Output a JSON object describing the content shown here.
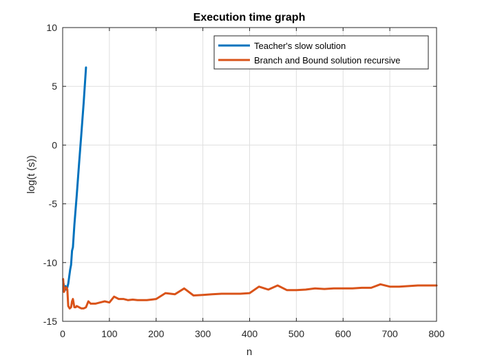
{
  "chart_data": {
    "type": "line",
    "title": "Execution time graph",
    "xlabel": "n",
    "ylabel": "log(t (s))",
    "xlim": [
      0,
      800
    ],
    "ylim": [
      -15,
      10
    ],
    "xticks": [
      0,
      100,
      200,
      300,
      400,
      500,
      600,
      700,
      800
    ],
    "yticks": [
      -15,
      -10,
      -5,
      0,
      5,
      10
    ],
    "grid": true,
    "legend_position": "top-right",
    "series": [
      {
        "name": "Teacher's slow solution",
        "color": "#0072BD",
        "x": [
          2,
          4,
          6,
          8,
          10,
          12,
          14,
          16,
          18,
          20,
          22,
          25,
          30,
          35,
          40,
          45,
          50
        ],
        "y": [
          -11.8,
          -12.4,
          -12.0,
          -12.3,
          -12.1,
          -11.8,
          -11.2,
          -10.6,
          -10.2,
          -9.0,
          -8.7,
          -6.8,
          -4.3,
          -1.6,
          1.0,
          3.6,
          6.6
        ]
      },
      {
        "name": "Branch and Bound solution recursive",
        "color": "#D95319",
        "x": [
          1,
          3,
          5,
          8,
          10,
          12,
          15,
          18,
          20,
          22,
          25,
          28,
          30,
          35,
          40,
          45,
          50,
          55,
          60,
          70,
          80,
          90,
          100,
          110,
          120,
          130,
          140,
          150,
          160,
          170,
          180,
          190,
          200,
          220,
          240,
          260,
          280,
          300,
          320,
          340,
          360,
          380,
          400,
          420,
          440,
          460,
          480,
          500,
          520,
          540,
          560,
          580,
          600,
          620,
          640,
          660,
          680,
          700,
          720,
          740,
          760,
          780,
          800
        ],
        "y": [
          -11.4,
          -12.5,
          -12.2,
          -12.1,
          -12.3,
          -13.7,
          -13.9,
          -13.8,
          -13.3,
          -13.1,
          -13.8,
          -13.8,
          -13.7,
          -13.8,
          -13.9,
          -13.9,
          -13.8,
          -13.3,
          -13.5,
          -13.5,
          -13.4,
          -13.3,
          -13.4,
          -12.9,
          -13.1,
          -13.1,
          -13.2,
          -13.15,
          -13.2,
          -13.2,
          -13.2,
          -13.15,
          -13.1,
          -12.6,
          -12.7,
          -12.2,
          -12.8,
          -12.75,
          -12.7,
          -12.65,
          -12.65,
          -12.65,
          -12.6,
          -12.05,
          -12.3,
          -11.95,
          -12.35,
          -12.35,
          -12.3,
          -12.2,
          -12.25,
          -12.2,
          -12.2,
          -12.2,
          -12.15,
          -12.15,
          -11.85,
          -12.05,
          -12.05,
          -12.0,
          -11.95,
          -11.95,
          -11.95
        ]
      }
    ]
  }
}
